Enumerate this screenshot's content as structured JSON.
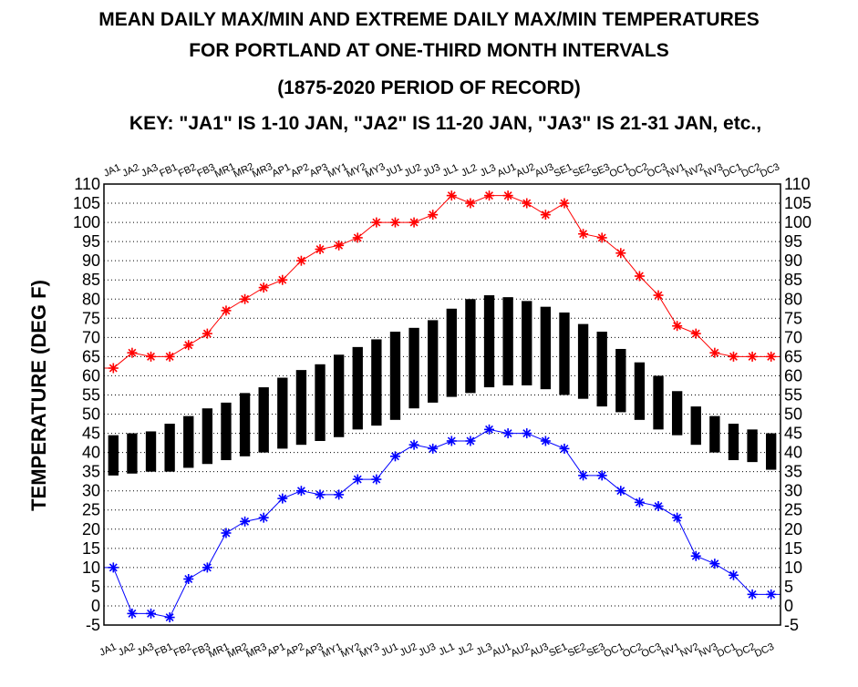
{
  "titles": {
    "line1": "MEAN DAILY MAX/MIN AND EXTREME DAILY MAX/MIN TEMPERATURES",
    "line2": "FOR PORTLAND AT ONE-THIRD MONTH INTERVALS",
    "line3": "(1875-2020 PERIOD OF RECORD)",
    "line4": "KEY: \"JA1\" IS 1-10 JAN, \"JA2\" IS 11-20 JAN, \"JA3\" IS 21-31 JAN, etc.,"
  },
  "colors": {
    "record_high": "#ff0000",
    "record_low": "#0000ff",
    "mean_bar": "#000000",
    "grid": "#000000"
  },
  "chart_data": {
    "type": "bar",
    "ylabel": "TEMPERATURE (DEG F)",
    "ylim": [
      -5,
      110
    ],
    "ytick_step": 5,
    "grid": "horizontal dotted",
    "categories": [
      "JA1",
      "JA2",
      "JA3",
      "FB1",
      "FB2",
      "FB3",
      "MR1",
      "MR2",
      "MR3",
      "AP1",
      "AP2",
      "AP3",
      "MY1",
      "MY2",
      "MY3",
      "JU1",
      "JU2",
      "JU3",
      "JL1",
      "JL2",
      "JL3",
      "AU1",
      "AU2",
      "AU3",
      "SE1",
      "SE2",
      "SE3",
      "OC1",
      "OC2",
      "OC3",
      "NV1",
      "NV2",
      "NV3",
      "DC1",
      "DC2",
      "DC3"
    ],
    "mean_max": [
      44.5,
      45,
      45.5,
      47.5,
      49.5,
      51.5,
      53,
      55.5,
      57,
      59.5,
      61.5,
      63,
      65.5,
      67.5,
      69.5,
      71.5,
      72.5,
      74.5,
      77.5,
      80,
      81,
      80.5,
      79.5,
      78,
      76.5,
      73.5,
      71.5,
      67,
      63.5,
      60,
      56,
      52,
      49.5,
      47.5,
      46,
      45
    ],
    "mean_min": [
      34,
      34.5,
      35,
      35,
      36,
      37,
      38,
      39,
      40,
      41,
      42,
      43,
      44,
      46,
      47,
      48.5,
      51.5,
      53,
      54.5,
      55.5,
      57,
      57.5,
      57.5,
      56.5,
      55,
      54,
      52,
      50.5,
      48.5,
      46,
      44.5,
      42,
      40,
      38,
      37.5,
      35.5
    ],
    "series": [
      {
        "name": "",
        "values": [
          62,
          66,
          65,
          65,
          68,
          71,
          77,
          80,
          83,
          85,
          90,
          93,
          94,
          96,
          100,
          100,
          100,
          102,
          107,
          105,
          107,
          107,
          105,
          102,
          105,
          97,
          96,
          92,
          86,
          81,
          73,
          71,
          66,
          65,
          65,
          65
        ]
      },
      {
        "name": "",
        "values": [
          10,
          -2,
          -2,
          -3,
          7,
          10,
          19,
          22,
          23,
          28,
          30,
          29,
          29,
          33,
          33,
          39,
          42,
          41,
          43,
          43,
          46,
          45,
          45,
          43,
          41,
          34,
          34,
          30,
          27,
          26,
          23,
          13,
          11,
          8,
          3,
          3
        ]
      }
    ]
  }
}
